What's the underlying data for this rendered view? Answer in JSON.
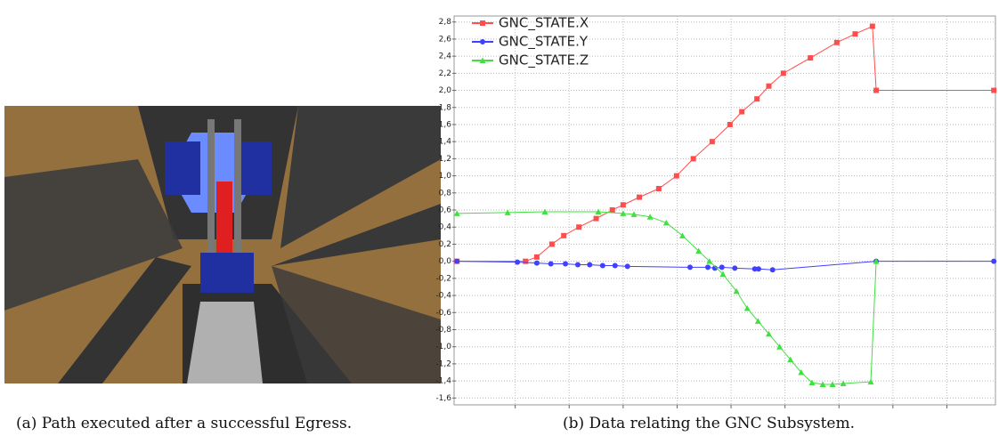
{
  "captions": [
    "(a) Path executed after a successful Egress.",
    "(b) Data relating the GNC Subsystem."
  ],
  "chart_data": {
    "type": "line",
    "grid": true,
    "legend": "top-left",
    "xlim": [
      0,
      100
    ],
    "xticks": [
      11,
      21,
      31,
      41,
      51,
      61,
      71,
      81,
      91
    ],
    "ylim": [
      -1.68,
      2.87
    ],
    "yticks": [
      {
        "value": -1.6,
        "label": "-1,6"
      },
      {
        "value": -1.4,
        "label": "-1,4"
      },
      {
        "value": -1.2,
        "label": "-1,2"
      },
      {
        "value": -1.0,
        "label": "-1,0"
      },
      {
        "value": -0.8,
        "label": "-0,8"
      },
      {
        "value": -0.6,
        "label": "-0,6"
      },
      {
        "value": -0.4,
        "label": "-0,4"
      },
      {
        "value": -0.2,
        "label": "-0,2"
      },
      {
        "value": 0.0,
        "label": "0,0"
      },
      {
        "value": 0.2,
        "label": "0,2"
      },
      {
        "value": 0.4,
        "label": "0,4"
      },
      {
        "value": 0.6,
        "label": "0,6"
      },
      {
        "value": 0.8,
        "label": "0,8"
      },
      {
        "value": 1.0,
        "label": "1,0"
      },
      {
        "value": 1.2,
        "label": "1,2"
      },
      {
        "value": 1.4,
        "label": "1,4"
      },
      {
        "value": 1.6,
        "label": "1,6"
      },
      {
        "value": 1.8,
        "label": "1,8"
      },
      {
        "value": 2.0,
        "label": "2,0"
      },
      {
        "value": 2.2,
        "label": "2,2"
      },
      {
        "value": 2.4,
        "label": "2,4"
      },
      {
        "value": 2.6,
        "label": "2,6"
      },
      {
        "value": 2.8,
        "label": "2,8"
      }
    ],
    "series": [
      {
        "name": "GNC_STATE.X",
        "color": "#ff4d4d",
        "marker": "square",
        "x": [
          0.2,
          12.9,
          15,
          17.8,
          20,
          22.8,
          26,
          29,
          31,
          34,
          37.6,
          40.9,
          44,
          47.5,
          50.8,
          53,
          55.8,
          58,
          60.7,
          65.7,
          70.6,
          74,
          77.2,
          77.9,
          99.7
        ],
        "values": [
          0,
          0,
          0.05,
          0.2,
          0.3,
          0.4,
          0.5,
          0.6,
          0.66,
          0.75,
          0.85,
          1.0,
          1.2,
          1.4,
          1.6,
          1.75,
          1.9,
          2.05,
          2.2,
          2.38,
          2.56,
          2.66,
          2.75,
          2.0,
          2.0
        ]
      },
      {
        "name": "GNC_STATE.Y",
        "color": "#4040ff",
        "marker": "circle",
        "x": [
          0.2,
          11.4,
          15,
          17.6,
          20.3,
          22.6,
          24.8,
          27.2,
          29.5,
          31.8,
          43.4,
          46.7,
          48,
          49.3,
          51.7,
          55.4,
          56.1,
          58.7,
          77.9,
          99.7
        ],
        "values": [
          0,
          -0.01,
          -0.02,
          -0.03,
          -0.03,
          -0.04,
          -0.04,
          -0.05,
          -0.05,
          -0.06,
          -0.07,
          -0.07,
          -0.08,
          -0.07,
          -0.08,
          -0.09,
          -0.09,
          -0.1,
          0.0,
          0.0
        ]
      },
      {
        "name": "GNC_STATE.Z",
        "color": "#40e040",
        "marker": "triangle",
        "x": [
          0.2,
          9.6,
          16.5,
          26.4,
          31,
          33,
          36,
          39,
          42,
          45,
          47,
          49.5,
          52,
          54,
          56,
          58,
          60,
          62,
          64,
          66,
          68,
          69.8,
          71.8,
          76.9,
          77.9
        ],
        "values": [
          0.56,
          0.57,
          0.58,
          0.58,
          0.56,
          0.55,
          0.52,
          0.45,
          0.3,
          0.12,
          0.0,
          -0.15,
          -0.35,
          -0.55,
          -0.7,
          -0.85,
          -1.0,
          -1.15,
          -1.3,
          -1.42,
          -1.44,
          -1.44,
          -1.43,
          -1.41,
          0.0
        ]
      }
    ]
  }
}
